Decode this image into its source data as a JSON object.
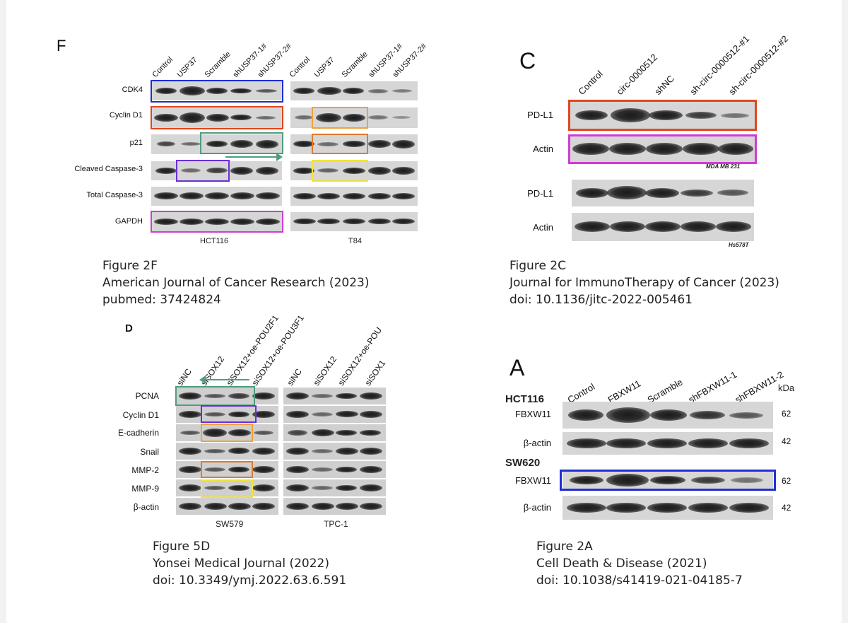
{
  "panelF": {
    "letter": "F",
    "lanes": [
      "Control",
      "USP37",
      "Scramble",
      "shUSP37-1#",
      "shUSP37-2#"
    ],
    "rows": [
      "CDK4",
      "Cyclin D1",
      "p21",
      "Cleaved Caspase-3",
      "Total Caspase-3",
      "GAPDH"
    ],
    "cell_lines": [
      "HCT116",
      "T84"
    ],
    "caption": [
      "Figure 2F",
      "American Journal of Cancer Research (2023)",
      "pubmed: 37424824"
    ]
  },
  "panelC": {
    "letter": "C",
    "lanes": [
      "Control",
      "circ-0000512",
      "shNC",
      "sh-circ-0000512-#1",
      "sh-circ-0000512-#2"
    ],
    "rows": [
      "PD-L1",
      "Actin"
    ],
    "cell_lines": [
      "MDA MB 231",
      "Hs578T"
    ],
    "caption": [
      "Figure 2C",
      "Journal for ImmunoTherapy of Cancer (2023)",
      "doi: 10.1136/jitc-2022-005461"
    ]
  },
  "panelD": {
    "letter": "D",
    "lanes": [
      "siNC",
      "siSOX12",
      "siSOX12+oe-POU2F1",
      "siSOX12+oe-POU3F1",
      "siNC",
      "siSOX12",
      "siSOX12+oe-POU",
      "siSOX1"
    ],
    "rows": [
      "PCNA",
      "Cyclin D1",
      "E-cadherin",
      "Snail",
      "MMP-2",
      "MMP-9",
      "β-actin"
    ],
    "cell_lines": [
      "SW579",
      "TPC-1"
    ],
    "caption": [
      "Figure 5D",
      "Yonsei Medical Journal (2022)",
      "doi: 10.3349/ymj.2022.63.6.591"
    ]
  },
  "panelA": {
    "letter": "A",
    "lanes": [
      "Control",
      "FBXW11",
      "Scramble",
      "shFBXW11-1",
      "shFBXW11-2"
    ],
    "unit": "kDa",
    "cell_lines": [
      "HCT116",
      "SW620"
    ],
    "rows": [
      "FBXW11",
      "β-actin",
      "FBXW11",
      "β-actin"
    ],
    "kda_values": [
      "62",
      "42",
      "62",
      "42"
    ],
    "caption": [
      "Figure 2A",
      "Cell Death & Disease (2021)",
      "doi: 10.1038/s41419-021-04185-7"
    ]
  },
  "colors": {
    "blue": "#1f2fd6",
    "red": "#e2461b",
    "green": "#4f9e7c",
    "purple": "#6a2fd9",
    "magenta": "#cf3bd6",
    "orange": "#f0a13a",
    "dark_orange": "#e07a30",
    "yellow": "#f1e33b"
  }
}
